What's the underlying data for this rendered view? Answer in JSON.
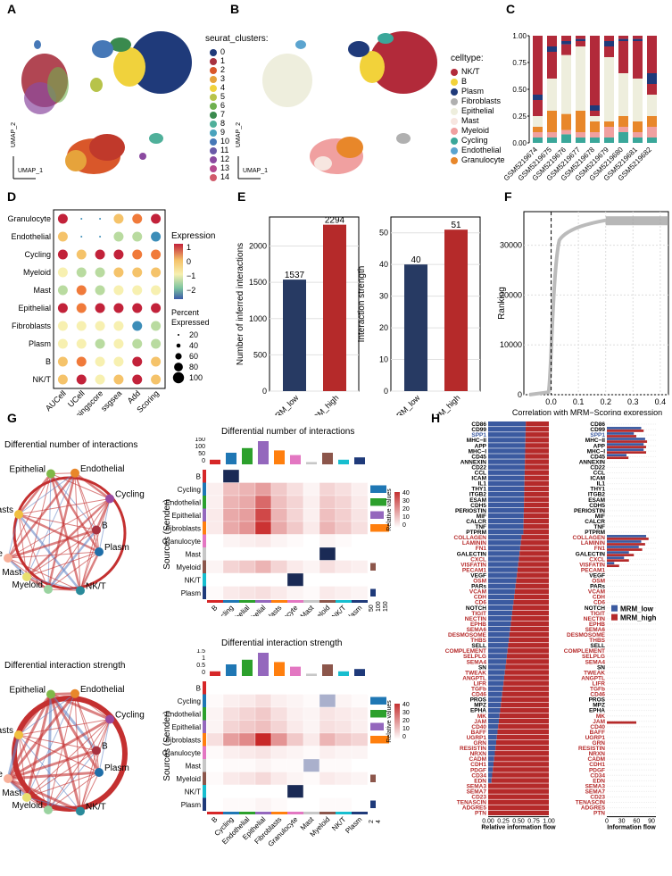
{
  "panels": {
    "A": "A",
    "B": "B",
    "C": "C",
    "D": "D",
    "E": "E",
    "F": "F",
    "G": "G",
    "H": "H"
  },
  "panelA": {
    "legend_title": "seurat_clusters:",
    "clusters": [
      "0",
      "1",
      "2",
      "3",
      "4",
      "5",
      "6",
      "7",
      "8",
      "9",
      "10",
      "11",
      "12",
      "13",
      "14"
    ],
    "colors": [
      "#1f3a7a",
      "#a83240",
      "#d9572a",
      "#e6a33b",
      "#f0d23c",
      "#b7c34a",
      "#6fb04f",
      "#3a8a4e",
      "#4fb09a",
      "#49a3bd",
      "#4678b7",
      "#6a5aa8",
      "#8b4aa0",
      "#b54a8e",
      "#d15a6a"
    ],
    "xlab": "UMAP_1",
    "ylab": "UMAP_2"
  },
  "panelB": {
    "legend_title": "celltype:",
    "types": [
      "NK/T",
      "B",
      "Plasm",
      "Fibroblasts",
      "Epithelial",
      "Mast",
      "Myeloid",
      "Cycling",
      "Endothelial",
      "Granulocyte"
    ],
    "colors": [
      "#b22a3a",
      "#f2d23a",
      "#1f3a7a",
      "#b0b0b0",
      "#eeeedd",
      "#f7e6e0",
      "#f0a0a0",
      "#3aa79a",
      "#5ba4cf",
      "#e8872a"
    ],
    "xlab": "UMAP_1",
    "ylab": "UMAP_2"
  },
  "panelC": {
    "samples": [
      "GSM5219674",
      "GSM5219675",
      "GSM5219676",
      "GSM5219677",
      "GSM5219678",
      "GSM5219679",
      "GSM5219680",
      "GSM5219681",
      "GSM5219682"
    ],
    "yticks": [
      "0.00",
      "0.25",
      "0.50",
      "0.75",
      "1.00"
    ]
  },
  "panelD": {
    "rows": [
      "Granulocyte",
      "Endothelial",
      "Cycling",
      "Myeloid",
      "Mast",
      "Epithelial",
      "Fibroblasts",
      "Plasm",
      "B",
      "NK/T"
    ],
    "cols": [
      "AUCell",
      "UCell",
      "singscore",
      "ssgsea",
      "Add",
      "Scoring"
    ],
    "col_labels": [
      "AUCell",
      "UCell",
      "singscore",
      "ssgsea",
      "Add\nScoring"
    ],
    "legend_expr_title": "Expression",
    "expr_ticks": [
      "1",
      "0",
      "−1",
      "−2"
    ],
    "legend_pct_title1": "Percent",
    "legend_pct_title2": "Expressed",
    "pct_ticks": [
      "20",
      "40",
      "60",
      "80",
      "100"
    ]
  },
  "panelE": {
    "left": {
      "ylabel": "Number of inferred interactions",
      "yticks": [
        "0",
        "500",
        "1000",
        "1500",
        "2000"
      ],
      "categories": [
        "MRM_low",
        "MRM_high"
      ],
      "values": [
        1537,
        2294
      ],
      "value_labels": [
        "1537",
        "2294"
      ]
    },
    "right": {
      "ylabel": "Interaction strength",
      "yticks": [
        "0",
        "10",
        "20",
        "30",
        "40",
        "50"
      ],
      "categories": [
        "MRM_low",
        "MRM_high"
      ],
      "values": [
        40,
        51
      ],
      "value_labels": [
        "40",
        "51"
      ]
    },
    "colors": [
      "#273a63",
      "#b52a2a"
    ]
  },
  "panelF": {
    "ylabel": "Ranking",
    "xlabel": "Correlation with MRM−Scoring expression",
    "yticks": [
      "0",
      "10000",
      "20000",
      "30000"
    ],
    "xticks": [
      "0.0",
      "0.1",
      "0.2",
      "0.3",
      "0.4"
    ]
  },
  "panelG": {
    "net1_title": "Differential number of interactions",
    "net2_title": "Differential interaction strength",
    "nodes": [
      "Epithelial",
      "Endothelial",
      "Cycling",
      "Fibroblasts",
      "B",
      "Granulocyte",
      "Plasm",
      "Mast",
      "Myeloid",
      "NK/T"
    ],
    "heat1_title": "Differential number of interactions",
    "heat2_title": "Differential interaction strength",
    "ylabel": "Sources (Sender)",
    "rows": [
      "B",
      "Cycling",
      "Endothelial",
      "Epithelial",
      "Fibroblasts",
      "Granulocyte",
      "Mast",
      "Myeloid",
      "NK/T",
      "Plasm"
    ],
    "cols": [
      "B",
      "Cycling",
      "Endothelial",
      "Epithelial",
      "Fibroblasts",
      "Granulocyte",
      "Mast",
      "Myeloid",
      "NK/T",
      "Plasm"
    ],
    "legend_title": "Relative values",
    "legend_ticks": [
      "40",
      "30",
      "20",
      "10",
      "0"
    ],
    "top1_ticks": [
      "150",
      "100",
      "50",
      "0"
    ],
    "top2_ticks": [
      "1.5",
      "1",
      "0.5",
      "0"
    ],
    "side1_ticks": [
      "50",
      "100",
      "150"
    ],
    "side2_ticks": [
      "2",
      "4"
    ],
    "heat1": [
      [
        0,
        0,
        0,
        0,
        0,
        0,
        0,
        0,
        0,
        0
      ],
      [
        3,
        12,
        14,
        18,
        10,
        6,
        2,
        8,
        6,
        3
      ],
      [
        3,
        14,
        16,
        28,
        12,
        8,
        3,
        10,
        8,
        4
      ],
      [
        4,
        16,
        18,
        34,
        14,
        8,
        3,
        12,
        9,
        5
      ],
      [
        4,
        16,
        20,
        38,
        16,
        10,
        4,
        14,
        10,
        6
      ],
      [
        0,
        2,
        3,
        4,
        2,
        1,
        0,
        2,
        1,
        0
      ],
      [
        0,
        0,
        0,
        0,
        0,
        0,
        0,
        0,
        0,
        0
      ],
      [
        2,
        8,
        10,
        14,
        8,
        4,
        2,
        6,
        4,
        3
      ],
      [
        0,
        0,
        0,
        0,
        0,
        0,
        0,
        0,
        0,
        0
      ],
      [
        1,
        4,
        5,
        6,
        4,
        2,
        1,
        4,
        3,
        2
      ]
    ],
    "heat2": [
      [
        0,
        0,
        0,
        0,
        0,
        0,
        0,
        0,
        0,
        0
      ],
      [
        1,
        3,
        4,
        6,
        3,
        2,
        1,
        3,
        2,
        1
      ],
      [
        2,
        6,
        8,
        10,
        6,
        3,
        2,
        5,
        4,
        3
      ],
      [
        2,
        8,
        10,
        12,
        8,
        4,
        2,
        6,
        5,
        3
      ],
      [
        6,
        18,
        22,
        40,
        20,
        10,
        4,
        14,
        10,
        8
      ],
      [
        1,
        3,
        4,
        5,
        3,
        2,
        1,
        3,
        2,
        2
      ],
      [
        0,
        1,
        1,
        2,
        1,
        1,
        0,
        1,
        1,
        0
      ],
      [
        1,
        4,
        5,
        7,
        4,
        2,
        1,
        4,
        3,
        2
      ],
      [
        0,
        0,
        0,
        0,
        0,
        0,
        0,
        0,
        0,
        0
      ],
      [
        0,
        1,
        1,
        2,
        1,
        0,
        0,
        1,
        1,
        0
      ]
    ]
  },
  "panelH": {
    "pathways": [
      "CD86",
      "CD99",
      "SPP1",
      "MHC−II",
      "APP",
      "MHC−I",
      "CD45",
      "ANNEXIN",
      "CD22",
      "CCL",
      "ICAM",
      "IL1",
      "THY1",
      "ITGB2",
      "ESAM",
      "CDH5",
      "PERIOSTIN",
      "MIF",
      "CALCR",
      "TNF",
      "PTPRM",
      "COLLAGEN",
      "LAMININ",
      "FN1",
      "GALECTIN",
      "CXCL",
      "VISFATIN",
      "PECAM1",
      "VEGF",
      "OSM",
      "PARs",
      "VCAM",
      "CDH",
      "CD6",
      "NOTCH",
      "TIGIT",
      "NECTIN",
      "EPHB",
      "SEMA6",
      "DESMOSOME",
      "THBS",
      "SELL",
      "COMPLEMENT",
      "SELPLG",
      "SEMA4",
      "SN",
      "TWEAK",
      "ANGPTL",
      "LIFR",
      "TGFb",
      "CD46",
      "PROS",
      "MPZ",
      "EPHA",
      "MK",
      "JAM",
      "CD40",
      "BAFF",
      "UGRP1",
      "GRN",
      "RESISTIN",
      "NRXN",
      "CADM",
      "CDH1",
      "PDGF",
      "CD34",
      "EDN",
      "SEMA3",
      "SEMA7",
      "CD23",
      "TENASCIN",
      "ADGRE5",
      "PTN"
    ],
    "colors": [
      "k",
      "k",
      "b",
      "k",
      "k",
      "k",
      "k",
      "k",
      "k",
      "k",
      "k",
      "k",
      "k",
      "k",
      "k",
      "k",
      "k",
      "k",
      "k",
      "k",
      "k",
      "r",
      "r",
      "r",
      "k",
      "r",
      "r",
      "r",
      "k",
      "r",
      "k",
      "r",
      "r",
      "r",
      "k",
      "r",
      "r",
      "r",
      "r",
      "r",
      "r",
      "k",
      "r",
      "r",
      "r",
      "k",
      "r",
      "r",
      "r",
      "r",
      "r",
      "k",
      "k",
      "k",
      "r",
      "r",
      "r",
      "r",
      "r",
      "r",
      "r",
      "r",
      "r",
      "r",
      "r",
      "r",
      "r",
      "r",
      "r",
      "r",
      "r",
      "r",
      "r"
    ],
    "left_xlabel": "Relative information flow",
    "left_xticks": [
      "0.00",
      "0.25",
      "0.50",
      "0.75",
      "1.00"
    ],
    "right_xlabel": "Information flow",
    "right_xticks": [
      "0",
      "30",
      "60",
      "90"
    ],
    "legend": [
      "MRM_low",
      "MRM_high"
    ],
    "bar_colors": [
      "#3b5aa0",
      "#b52a2a"
    ]
  }
}
